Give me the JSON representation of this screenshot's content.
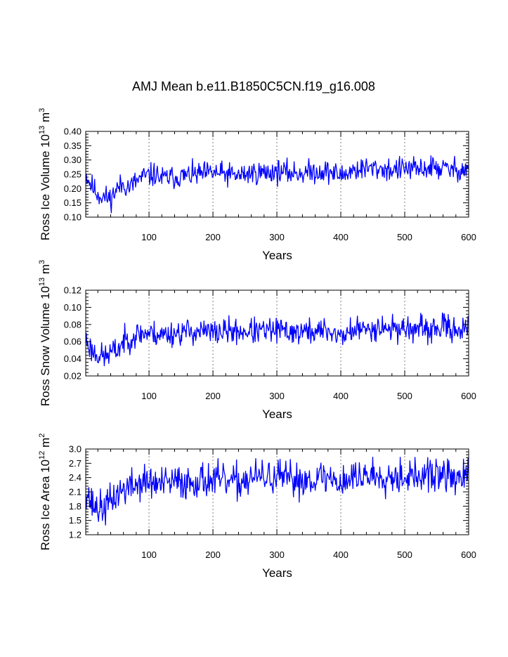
{
  "title": "AMJ Mean b.e11.B1850C5CN.f19_g16.008",
  "colors": {
    "series": "#0000ff",
    "reference_lines": "#808080",
    "axes": "#000000"
  },
  "chart_data": [
    {
      "id": "ice-volume",
      "type": "line",
      "xlabel": "Years",
      "ylabel_main": "Ross Ice Volume 10",
      "ylabel_exp": "13",
      "ylabel_unit": " m",
      "ylabel_unit_exp": "3",
      "xlim": [
        1,
        600
      ],
      "ylim": [
        0.1,
        0.4
      ],
      "xticks": [
        100,
        200,
        300,
        400,
        500,
        600
      ],
      "yticks": [
        "0.10",
        "0.15",
        "0.20",
        "0.25",
        "0.30",
        "0.35",
        "0.40"
      ],
      "ytick_values": [
        0.1,
        0.15,
        0.2,
        0.25,
        0.3,
        0.35,
        0.4
      ],
      "reference_x": [
        100,
        200,
        300,
        400,
        500
      ],
      "anchors": [
        [
          1,
          0.25
        ],
        [
          10,
          0.21
        ],
        [
          20,
          0.18
        ],
        [
          30,
          0.17
        ],
        [
          40,
          0.165
        ],
        [
          50,
          0.2
        ],
        [
          60,
          0.215
        ],
        [
          70,
          0.205
        ],
        [
          80,
          0.225
        ],
        [
          90,
          0.24
        ],
        [
          100,
          0.245
        ],
        [
          110,
          0.25
        ],
        [
          120,
          0.235
        ],
        [
          140,
          0.24
        ],
        [
          160,
          0.245
        ],
        [
          180,
          0.25
        ],
        [
          200,
          0.255
        ],
        [
          220,
          0.25
        ],
        [
          240,
          0.245
        ],
        [
          260,
          0.255
        ],
        [
          280,
          0.255
        ],
        [
          300,
          0.26
        ],
        [
          320,
          0.255
        ],
        [
          340,
          0.255
        ],
        [
          360,
          0.26
        ],
        [
          380,
          0.26
        ],
        [
          400,
          0.245
        ],
        [
          420,
          0.265
        ],
        [
          440,
          0.27
        ],
        [
          460,
          0.27
        ],
        [
          480,
          0.265
        ],
        [
          500,
          0.27
        ],
        [
          520,
          0.265
        ],
        [
          540,
          0.275
        ],
        [
          560,
          0.27
        ],
        [
          580,
          0.265
        ],
        [
          600,
          0.27
        ]
      ],
      "noise": 0.03,
      "clip": [
        0.115,
        0.375
      ],
      "seed": 11
    },
    {
      "id": "snow-volume",
      "type": "line",
      "xlabel": "Years",
      "ylabel_main": "Ross Snow Volume 10",
      "ylabel_exp": "13",
      "ylabel_unit": " m",
      "ylabel_unit_exp": "3",
      "xlim": [
        1,
        600
      ],
      "ylim": [
        0.02,
        0.12
      ],
      "xticks": [
        100,
        200,
        300,
        400,
        500,
        600
      ],
      "yticks": [
        "0.02",
        "0.04",
        "0.06",
        "0.08",
        "0.10",
        "0.12"
      ],
      "ytick_values": [
        0.02,
        0.04,
        0.06,
        0.08,
        0.1,
        0.12
      ],
      "reference_x": [
        100,
        200,
        300,
        400,
        500
      ],
      "anchors": [
        [
          1,
          0.063
        ],
        [
          10,
          0.05
        ],
        [
          20,
          0.045
        ],
        [
          30,
          0.042
        ],
        [
          40,
          0.047
        ],
        [
          50,
          0.05
        ],
        [
          60,
          0.06
        ],
        [
          70,
          0.064
        ],
        [
          80,
          0.068
        ],
        [
          90,
          0.07
        ],
        [
          100,
          0.07
        ],
        [
          120,
          0.068
        ],
        [
          140,
          0.07
        ],
        [
          160,
          0.072
        ],
        [
          180,
          0.072
        ],
        [
          200,
          0.07
        ],
        [
          220,
          0.072
        ],
        [
          240,
          0.072
        ],
        [
          260,
          0.072
        ],
        [
          280,
          0.072
        ],
        [
          300,
          0.073
        ],
        [
          320,
          0.072
        ],
        [
          340,
          0.071
        ],
        [
          360,
          0.072
        ],
        [
          380,
          0.073
        ],
        [
          400,
          0.066
        ],
        [
          420,
          0.074
        ],
        [
          440,
          0.074
        ],
        [
          460,
          0.078
        ],
        [
          480,
          0.075
        ],
        [
          500,
          0.076
        ],
        [
          520,
          0.074
        ],
        [
          540,
          0.073
        ],
        [
          560,
          0.077
        ],
        [
          580,
          0.075
        ],
        [
          600,
          0.075
        ]
      ],
      "noise": 0.011,
      "clip": [
        0.025,
        0.11
      ],
      "seed": 23
    },
    {
      "id": "ice-area",
      "type": "line",
      "xlabel": "Years",
      "ylabel_main": "Ross Ice Area 10",
      "ylabel_exp": "12",
      "ylabel_unit": " m",
      "ylabel_unit_exp": "2",
      "xlim": [
        1,
        600
      ],
      "ylim": [
        1.2,
        3.0
      ],
      "xticks": [
        100,
        200,
        300,
        400,
        500,
        600
      ],
      "yticks": [
        "1.2",
        "1.5",
        "1.8",
        "2.1",
        "2.4",
        "2.7",
        "3.0"
      ],
      "ytick_values": [
        1.2,
        1.5,
        1.8,
        2.1,
        2.4,
        2.7,
        3.0
      ],
      "reference_x": [
        100,
        200,
        300,
        400,
        500
      ],
      "anchors": [
        [
          1,
          2.2
        ],
        [
          10,
          1.85
        ],
        [
          20,
          1.75
        ],
        [
          30,
          1.75
        ],
        [
          40,
          1.9
        ],
        [
          50,
          2.05
        ],
        [
          60,
          2.15
        ],
        [
          70,
          2.2
        ],
        [
          80,
          2.25
        ],
        [
          90,
          2.3
        ],
        [
          100,
          2.3
        ],
        [
          120,
          2.25
        ],
        [
          140,
          2.3
        ],
        [
          160,
          2.3
        ],
        [
          180,
          2.35
        ],
        [
          200,
          2.35
        ],
        [
          220,
          2.3
        ],
        [
          240,
          2.3
        ],
        [
          260,
          2.4
        ],
        [
          280,
          2.4
        ],
        [
          300,
          2.4
        ],
        [
          320,
          2.35
        ],
        [
          340,
          2.35
        ],
        [
          360,
          2.4
        ],
        [
          380,
          2.4
        ],
        [
          400,
          2.3
        ],
        [
          420,
          2.4
        ],
        [
          440,
          2.45
        ],
        [
          460,
          2.45
        ],
        [
          480,
          2.45
        ],
        [
          500,
          2.45
        ],
        [
          520,
          2.4
        ],
        [
          540,
          2.45
        ],
        [
          560,
          2.45
        ],
        [
          580,
          2.4
        ],
        [
          600,
          2.4
        ]
      ],
      "noise": 0.27,
      "clip": [
        1.4,
        2.9
      ],
      "seed": 37
    }
  ]
}
